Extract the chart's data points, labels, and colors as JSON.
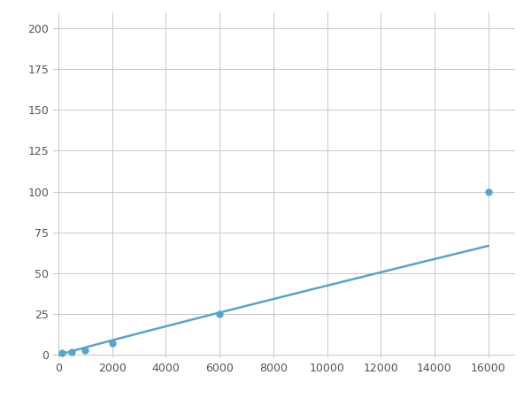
{
  "x_data": [
    125,
    500,
    1000,
    2000,
    6000,
    16000
  ],
  "y_data": [
    1,
    2,
    3,
    7,
    25,
    100
  ],
  "line_color": "#5BA3C9",
  "marker_color": "#5BA3C9",
  "marker_size": 5,
  "line_width": 1.8,
  "xlim": [
    -200,
    17000
  ],
  "ylim": [
    -2,
    210
  ],
  "xticks": [
    0,
    2000,
    4000,
    6000,
    8000,
    10000,
    12000,
    14000,
    16000
  ],
  "yticks": [
    0,
    25,
    50,
    75,
    100,
    125,
    150,
    175,
    200
  ],
  "grid_color": "#C8C8C8",
  "background_color": "#FFFFFF",
  "figure_bg": "#FFFFFF"
}
